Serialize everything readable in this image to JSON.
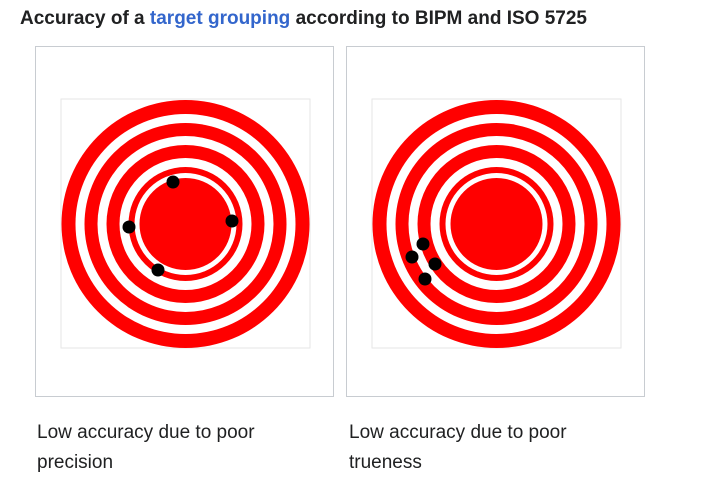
{
  "heading": {
    "before_link": "Accuracy of a ",
    "link_text": "target grouping",
    "after_link": " according to BIPM and ISO 5725"
  },
  "figures": [
    {
      "caption": "Low accuracy due to poor precision"
    },
    {
      "caption": "Low accuracy due to poor trueness"
    }
  ],
  "colors": {
    "target_red": "#ff0000",
    "shot": "#000000",
    "link": "#3366cc",
    "panel_border": "#c8ccd1",
    "inner_frame": "#e6e6e6"
  }
}
